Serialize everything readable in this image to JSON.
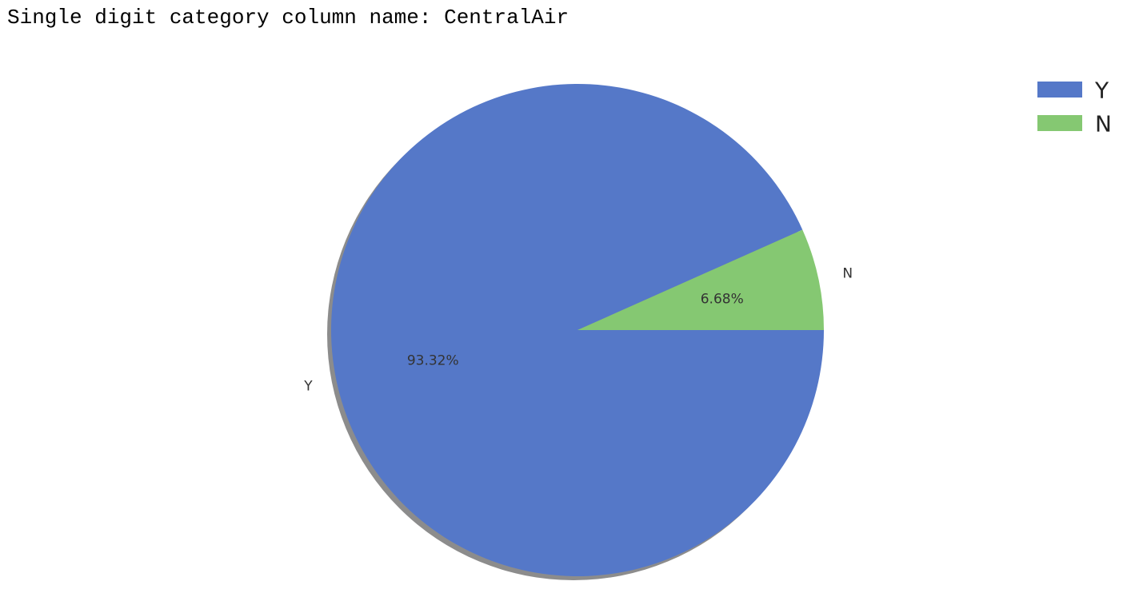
{
  "header": {
    "text": "Single digit category column name: CentralAir"
  },
  "chart_data": {
    "type": "pie",
    "labels": [
      "Y",
      "N"
    ],
    "values": [
      93.32,
      6.68
    ],
    "pct_labels": [
      "93.32%",
      "6.68%"
    ],
    "colors": [
      "#5578c8",
      "#85c872"
    ],
    "shadow": true,
    "startangle": 0,
    "direction": "clockwise",
    "legend": {
      "placement": "top-right",
      "entries": [
        "Y",
        "N"
      ]
    }
  }
}
